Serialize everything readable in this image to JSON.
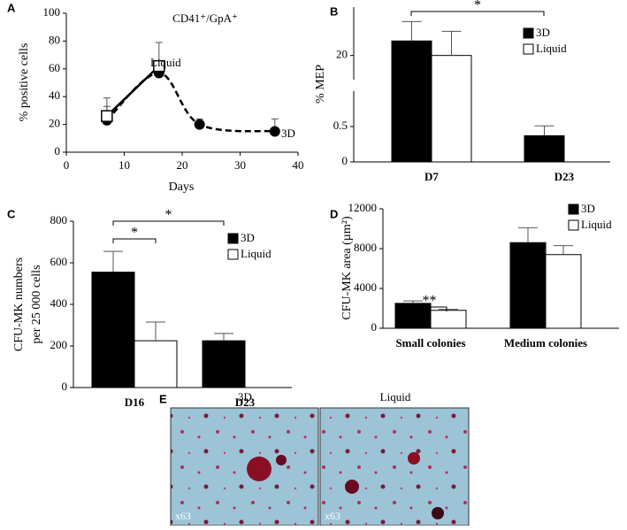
{
  "chart_data": [
    {
      "type": "line",
      "panel": "A",
      "title": "CD41⁺/GpA⁺",
      "xlabel": "Days",
      "ylabel": "% positive cells",
      "xlim": [
        0,
        40
      ],
      "xticks": [
        0,
        10,
        20,
        30,
        40
      ],
      "ylim": [
        0,
        100
      ],
      "yticks": [
        0,
        20,
        40,
        60,
        80,
        100
      ],
      "series": [
        {
          "name": "3D",
          "color": "#000000",
          "marker": "circle",
          "line_style": "dashed",
          "x": [
            7,
            16,
            23,
            36
          ],
          "values": [
            23,
            57,
            20,
            15
          ],
          "errors": [
            10,
            5,
            4,
            9
          ]
        },
        {
          "name": "Liquid",
          "color": "#000000",
          "marker": "square",
          "line_style": "solid",
          "x": [
            7,
            16
          ],
          "values": [
            26,
            62
          ],
          "errors": [
            13,
            17
          ]
        }
      ]
    },
    {
      "type": "bar",
      "panel": "B",
      "ylabel": "% MEP",
      "categories": [
        "D7",
        "D23"
      ],
      "ylim": [
        0,
        30
      ],
      "ybreak": [
        1,
        15
      ],
      "yticks": [
        0,
        0.5,
        20
      ],
      "legend": "upper right",
      "series": [
        {
          "name": "3D",
          "color": "#000000",
          "values": [
            23,
            0.37
          ],
          "errors": [
            4,
            0.14
          ]
        },
        {
          "name": "Liquid",
          "color": "#ffffff",
          "values": [
            20,
            null
          ],
          "errors": [
            5,
            null
          ]
        }
      ],
      "significance": [
        "*"
      ]
    },
    {
      "type": "bar",
      "panel": "C",
      "ylabel": [
        "CFU-MK numbers",
        "per 25 000 cells"
      ],
      "categories": [
        "D16",
        "D23"
      ],
      "ylim": [
        0,
        800
      ],
      "yticks": [
        0,
        200,
        400,
        600,
        800
      ],
      "legend": "upper right",
      "series": [
        {
          "name": "3D",
          "color": "#000000",
          "values": [
            555,
            225
          ],
          "errors": [
            100,
            35
          ]
        },
        {
          "name": "Liquid",
          "color": "#ffffff",
          "values": [
            225,
            null
          ],
          "errors": [
            90,
            null
          ]
        }
      ],
      "significance": [
        "*",
        "*"
      ]
    },
    {
      "type": "bar",
      "panel": "D",
      "ylabel": "CFU-MK area (µm²)",
      "categories": [
        "Small colonies",
        "Medium colonies"
      ],
      "ylim": [
        0,
        12000
      ],
      "yticks": [
        0,
        4000,
        8000,
        12000
      ],
      "legend": "upper right",
      "series": [
        {
          "name": "3D",
          "color": "#000000",
          "values": [
            2500,
            8600
          ],
          "errors": [
            250,
            1500
          ]
        },
        {
          "name": "Liquid",
          "color": "#ffffff",
          "values": [
            1800,
            7400
          ],
          "errors": [
            100,
            900
          ]
        }
      ],
      "significance": [
        "**"
      ]
    }
  ],
  "figure_e": {
    "panel": "E",
    "images": [
      {
        "title": "3D",
        "magnification": "x63"
      },
      {
        "title": "Liquid",
        "magnification": "x63"
      }
    ]
  }
}
